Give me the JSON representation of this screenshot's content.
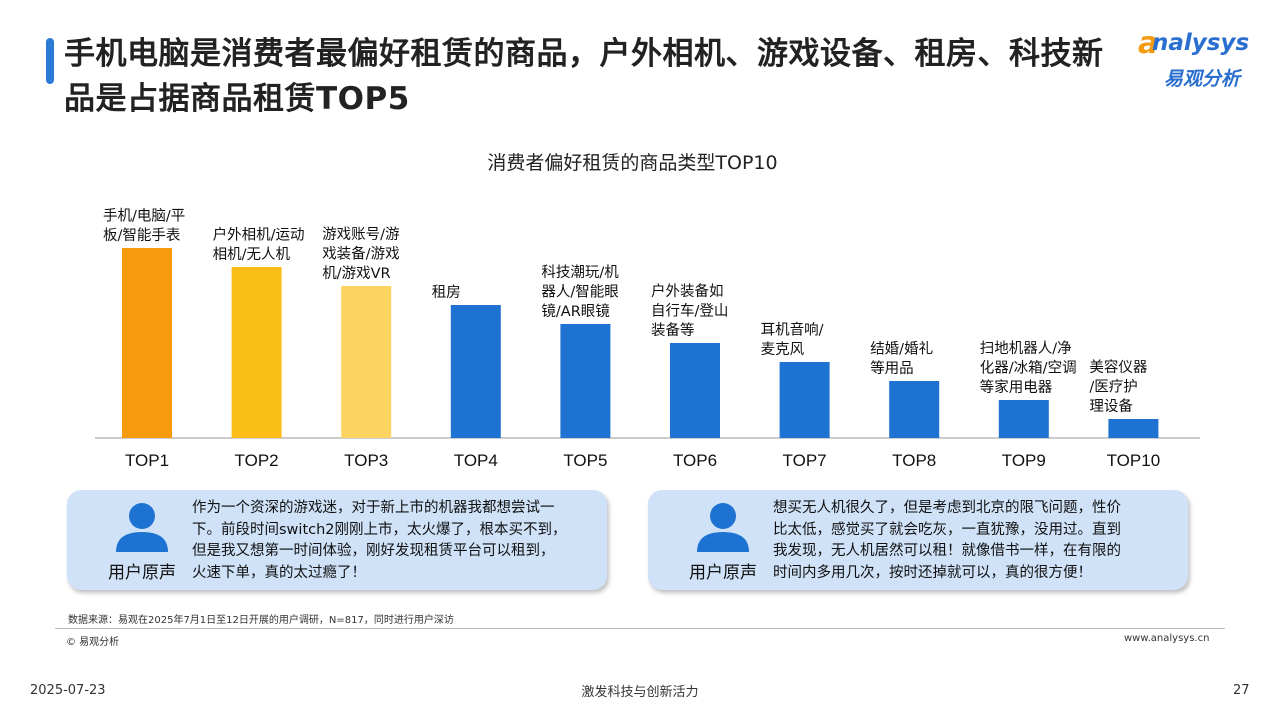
{
  "header": {
    "title": "手机电脑是消费者最偏好租赁的商品，户外相机、游戏设备、租房、科技新品是占据商品租赁TOP5",
    "logo_text": "nalysys",
    "logo_initial": "a",
    "logo_cn": "易观分析"
  },
  "chart_data": {
    "type": "bar",
    "title": "消费者偏好租赁的商品类型TOP10",
    "categories": [
      "TOP1",
      "TOP2",
      "TOP3",
      "TOP4",
      "TOP5",
      "TOP6",
      "TOP7",
      "TOP8",
      "TOP9",
      "TOP10"
    ],
    "values": [
      10,
      9,
      8,
      7,
      6,
      5,
      4,
      3,
      2,
      1
    ],
    "bar_labels": [
      [
        "手机/电脑/平",
        "板/智能手表"
      ],
      [
        "户外相机/运动",
        "相机/无人机"
      ],
      [
        "游戏账号/游",
        "戏装备/游戏",
        "机/游戏VR"
      ],
      [
        "租房"
      ],
      [
        "科技潮玩/机",
        "器人/智能眼",
        "镜/AR眼镜"
      ],
      [
        "户外装备如",
        "自行车/登山",
        "装备等"
      ],
      [
        "耳机音响/",
        "麦克风"
      ],
      [
        "结婚/婚礼",
        "等用品"
      ],
      [
        "扫地机器人/净",
        "化器/冰箱/空调",
        "等家用电器"
      ],
      [
        "美容仪器",
        "/医疗护",
        "理设备"
      ]
    ],
    "colors": [
      "#f79a0e",
      "#fbbd17",
      "#fdd462",
      "#1e73d2",
      "#1e73d2",
      "#1e73d2",
      "#1e73d2",
      "#1e73d2",
      "#1e73d2",
      "#1e73d2"
    ],
    "ylim": [
      0,
      10
    ],
    "grid": false
  },
  "quotes": [
    {
      "label": "用户原声",
      "lines": [
        "作为一个资深的游戏迷，对于新上市的机器我都想尝试一",
        "下。前段时间switch2刚刚上市，太火爆了，根本买不到，",
        "但是我又想第一时间体验，刚好发现租赁平台可以租到，",
        "火速下单，真的太过瘾了！"
      ]
    },
    {
      "label": "用户原声",
      "lines": [
        "想买无人机很久了，但是考虑到北京的限飞问题，性价",
        "比太低，感觉买了就会吃灰，一直犹豫，没用过。直到",
        "我发现，无人机居然可以租！就像借书一样，在有限的",
        "时间内多用几次，按时还掉就可以，真的很方便！"
      ]
    }
  ],
  "source": "数据来源：易观在2025年7月1日至12日开展的用户调研，N=817，同时进行用户深访",
  "copyright": "© 易观分析",
  "website": "www.analysys.cn",
  "footer": {
    "date": "2025-07-23",
    "slogan": "激发科技与创新活力",
    "page": "27"
  },
  "icons": {
    "avatar": "user-avatar-icon"
  },
  "colors": {
    "accent": "#2b7bd6",
    "quote_bg": "#cfe2f8",
    "avatar": "#1e73d2"
  }
}
